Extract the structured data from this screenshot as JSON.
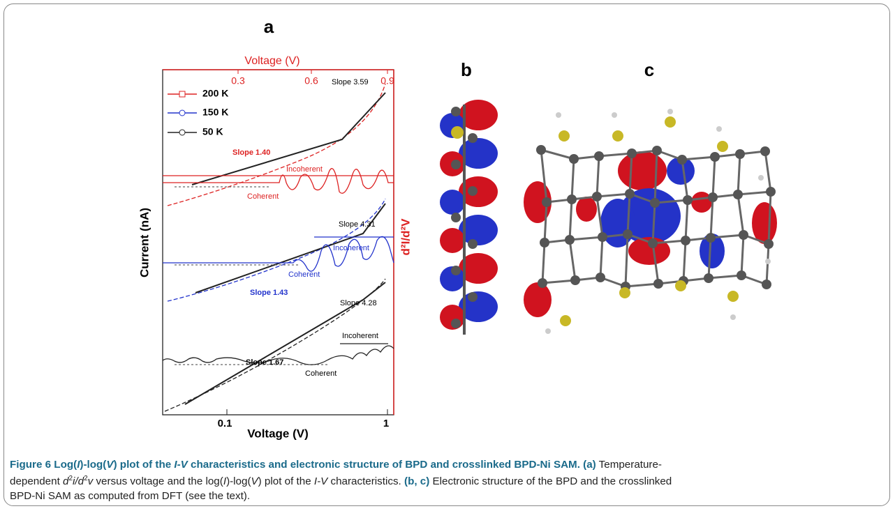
{
  "figure": {
    "panel_a": {
      "label": "a",
      "top_axis_title": "Voltage (V)",
      "top_ticks": [
        "0.3",
        "0.6",
        "0.9"
      ],
      "y_axis_title": "Current (nA)",
      "x_axis_title": "Voltage (V)",
      "x_ticks": [
        "0.1",
        "1"
      ],
      "right_axis_title": "d²I/d²V",
      "legend": [
        "200 K",
        "150 K",
        "50 K"
      ],
      "annotations": [
        "Slope 3.59",
        "Slope 1.40",
        "Incoherent",
        "Coherent",
        "Slope 4.31",
        "Incoherent",
        "Coherent",
        "Slope 1.43",
        "Slope 4.28",
        "Slope 1.67",
        "Incoherent",
        "Coherent"
      ]
    },
    "panel_b": {
      "label": "b"
    },
    "panel_c": {
      "label": "c"
    }
  },
  "caption": {
    "lines": [
      [
        "Figure 6 Log(",
        "I",
        ")-log(",
        "V",
        ") plot of the ",
        "I-V",
        " characteristics and electronic structure of BPD and crosslinked BPD-Ni SAM.",
        "(a)",
        "Temperature-"
      ],
      [
        "dependent ",
        "d",
        "2",
        "i/d",
        "2",
        "v",
        " versus voltage and the log(",
        "I",
        ")-log(",
        "V",
        ") plot of the ",
        "I-V",
        " characteristics.",
        "(b, c)",
        "Electronic structure of the BPD and the crosslinked"
      ],
      [
        "BPD-Ni SAM as computed from DFT (see the text)."
      ]
    ]
  }
}
